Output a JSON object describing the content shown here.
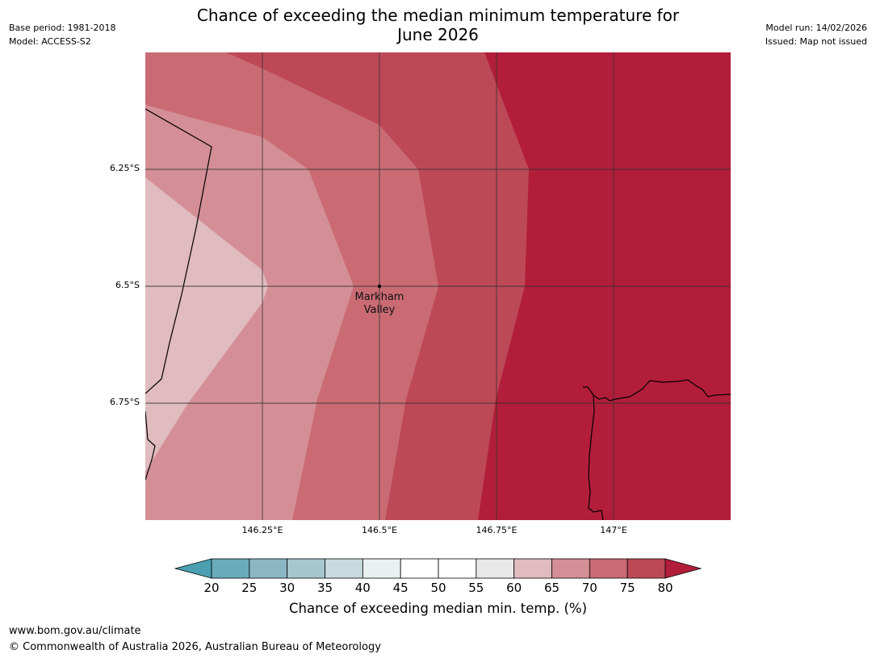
{
  "title": {
    "line1": "Chance of exceeding the median minimum temperature for",
    "line2": "June 2026"
  },
  "meta": {
    "base_period": "Base period: 1981-2018",
    "model": "Model: ACCESS-S2",
    "model_run": "Model run: 14/02/2026",
    "issued": "Issued: Map not issued"
  },
  "map": {
    "location_label_line1": "Markham",
    "location_label_line2": "Valley",
    "lat_labels": [
      "6.25°S",
      "6.5°S",
      "6.75°S"
    ],
    "lon_labels": [
      "146.25°E",
      "146.5°E",
      "146.75°E",
      "147°E"
    ],
    "zones": [
      {
        "range": "55-60",
        "color": "#e0bbbf"
      },
      {
        "range": "60-65",
        "color": "#d48f96"
      },
      {
        "range": "65-70",
        "color": "#ca6b74"
      },
      {
        "range": "70-75",
        "color": "#bd4957"
      },
      {
        "range": ">=80",
        "color": "#b21e3a"
      }
    ]
  },
  "colorbar": {
    "ticks": [
      "20",
      "25",
      "30",
      "35",
      "40",
      "45",
      "50",
      "55",
      "60",
      "65",
      "70",
      "75",
      "80"
    ],
    "colors": [
      "#6aabbb",
      "#8bb7c4",
      "#a7c6cd",
      "#c8dadd",
      "#e8f0f2",
      "#ffffff",
      "#ffffff",
      "#e8e8e8",
      "#e0bbbf",
      "#d48f96",
      "#ca6b74",
      "#bd4957"
    ],
    "under_color": "#4a9fb0",
    "over_color": "#b21e3a",
    "label": "Chance of exceeding median min. temp. (%)"
  },
  "footer": {
    "url": "www.bom.gov.au/climate",
    "copyright": "© Commonwealth of Australia 2026, Australian Bureau of Meteorology"
  }
}
